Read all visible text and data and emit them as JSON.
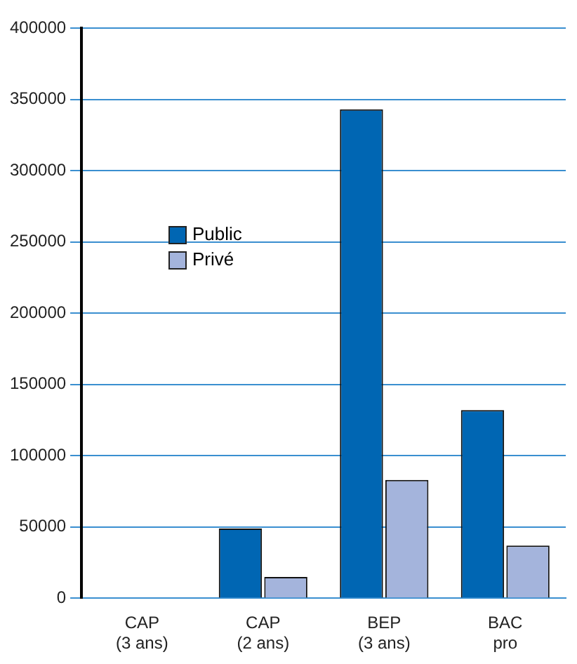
{
  "chart_data": {
    "type": "bar",
    "categories": [
      "CAP\n(3 ans)",
      "CAP\n(2 ans)",
      "BEP\n(3 ans)",
      "BAC\npro"
    ],
    "series": [
      {
        "name": "Public",
        "color": "#0066b3",
        "values": [
          0,
          49000,
          343000,
          132000
        ]
      },
      {
        "name": "Privé",
        "color": "#a4b4dc",
        "values": [
          0,
          15000,
          83000,
          37000
        ]
      }
    ],
    "ylim": [
      0,
      400000
    ],
    "yticks": [
      0,
      50000,
      100000,
      150000,
      200000,
      250000,
      300000,
      350000,
      400000
    ],
    "grid": "y",
    "legend": "top left"
  }
}
